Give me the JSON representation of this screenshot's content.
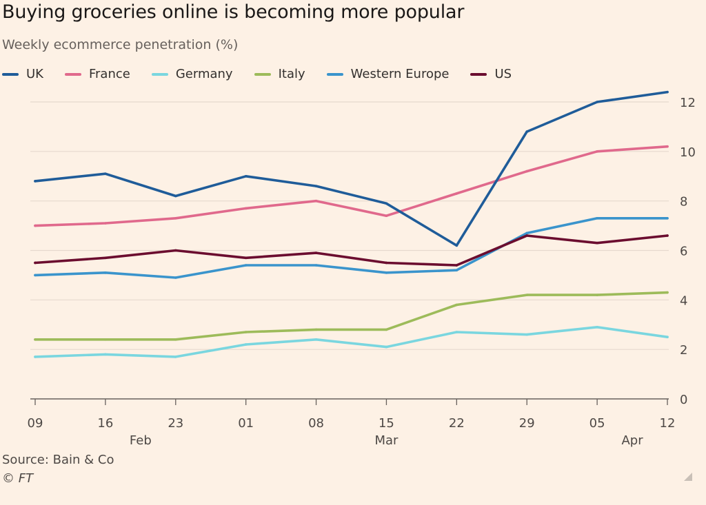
{
  "chart_data": {
    "type": "line",
    "title": "Buying groceries online is becoming more popular",
    "subtitle": "Weekly ecommerce penetration (%)",
    "x": [
      "09",
      "16",
      "23",
      "01",
      "08",
      "15",
      "22",
      "29",
      "05",
      "12"
    ],
    "month_labels": [
      {
        "label": "Feb",
        "x_index": 1.5
      },
      {
        "label": "Mar",
        "x_index": 5
      },
      {
        "label": "Apr",
        "x_index": 8.5
      }
    ],
    "ylim": [
      0,
      12.5
    ],
    "yticks": [
      "0",
      "2",
      "4",
      "6",
      "8",
      "10",
      "12"
    ],
    "y_axis_side": "right",
    "grid": true,
    "legend_position": "top",
    "series": [
      {
        "name": "UK",
        "color": "#1f5c99",
        "values": [
          8.8,
          9.1,
          8.2,
          9.0,
          8.6,
          7.9,
          6.2,
          10.8,
          12.0,
          12.4
        ]
      },
      {
        "name": "France",
        "color": "#e0698c",
        "values": [
          7.0,
          7.1,
          7.3,
          7.7,
          8.0,
          7.4,
          8.3,
          9.2,
          10.0,
          10.2
        ]
      },
      {
        "name": "Germany",
        "color": "#7ad6df",
        "values": [
          1.7,
          1.8,
          1.7,
          2.2,
          2.4,
          2.1,
          2.7,
          2.6,
          2.9,
          2.5
        ]
      },
      {
        "name": "Italy",
        "color": "#9dbb5a",
        "values": [
          2.4,
          2.4,
          2.4,
          2.7,
          2.8,
          2.8,
          3.8,
          4.2,
          4.2,
          4.3
        ]
      },
      {
        "name": "Western Europe",
        "color": "#3a94cc",
        "values": [
          5.0,
          5.1,
          4.9,
          5.4,
          5.4,
          5.1,
          5.2,
          6.7,
          7.3,
          7.3
        ]
      },
      {
        "name": "US",
        "color": "#6b0d2f",
        "values": [
          5.5,
          5.7,
          6.0,
          5.7,
          5.9,
          5.5,
          5.4,
          6.6,
          6.3,
          6.6
        ]
      }
    ]
  },
  "source": "Source: Bain & Co",
  "copyright": {
    "symbol": "©",
    "brand": "FT"
  }
}
